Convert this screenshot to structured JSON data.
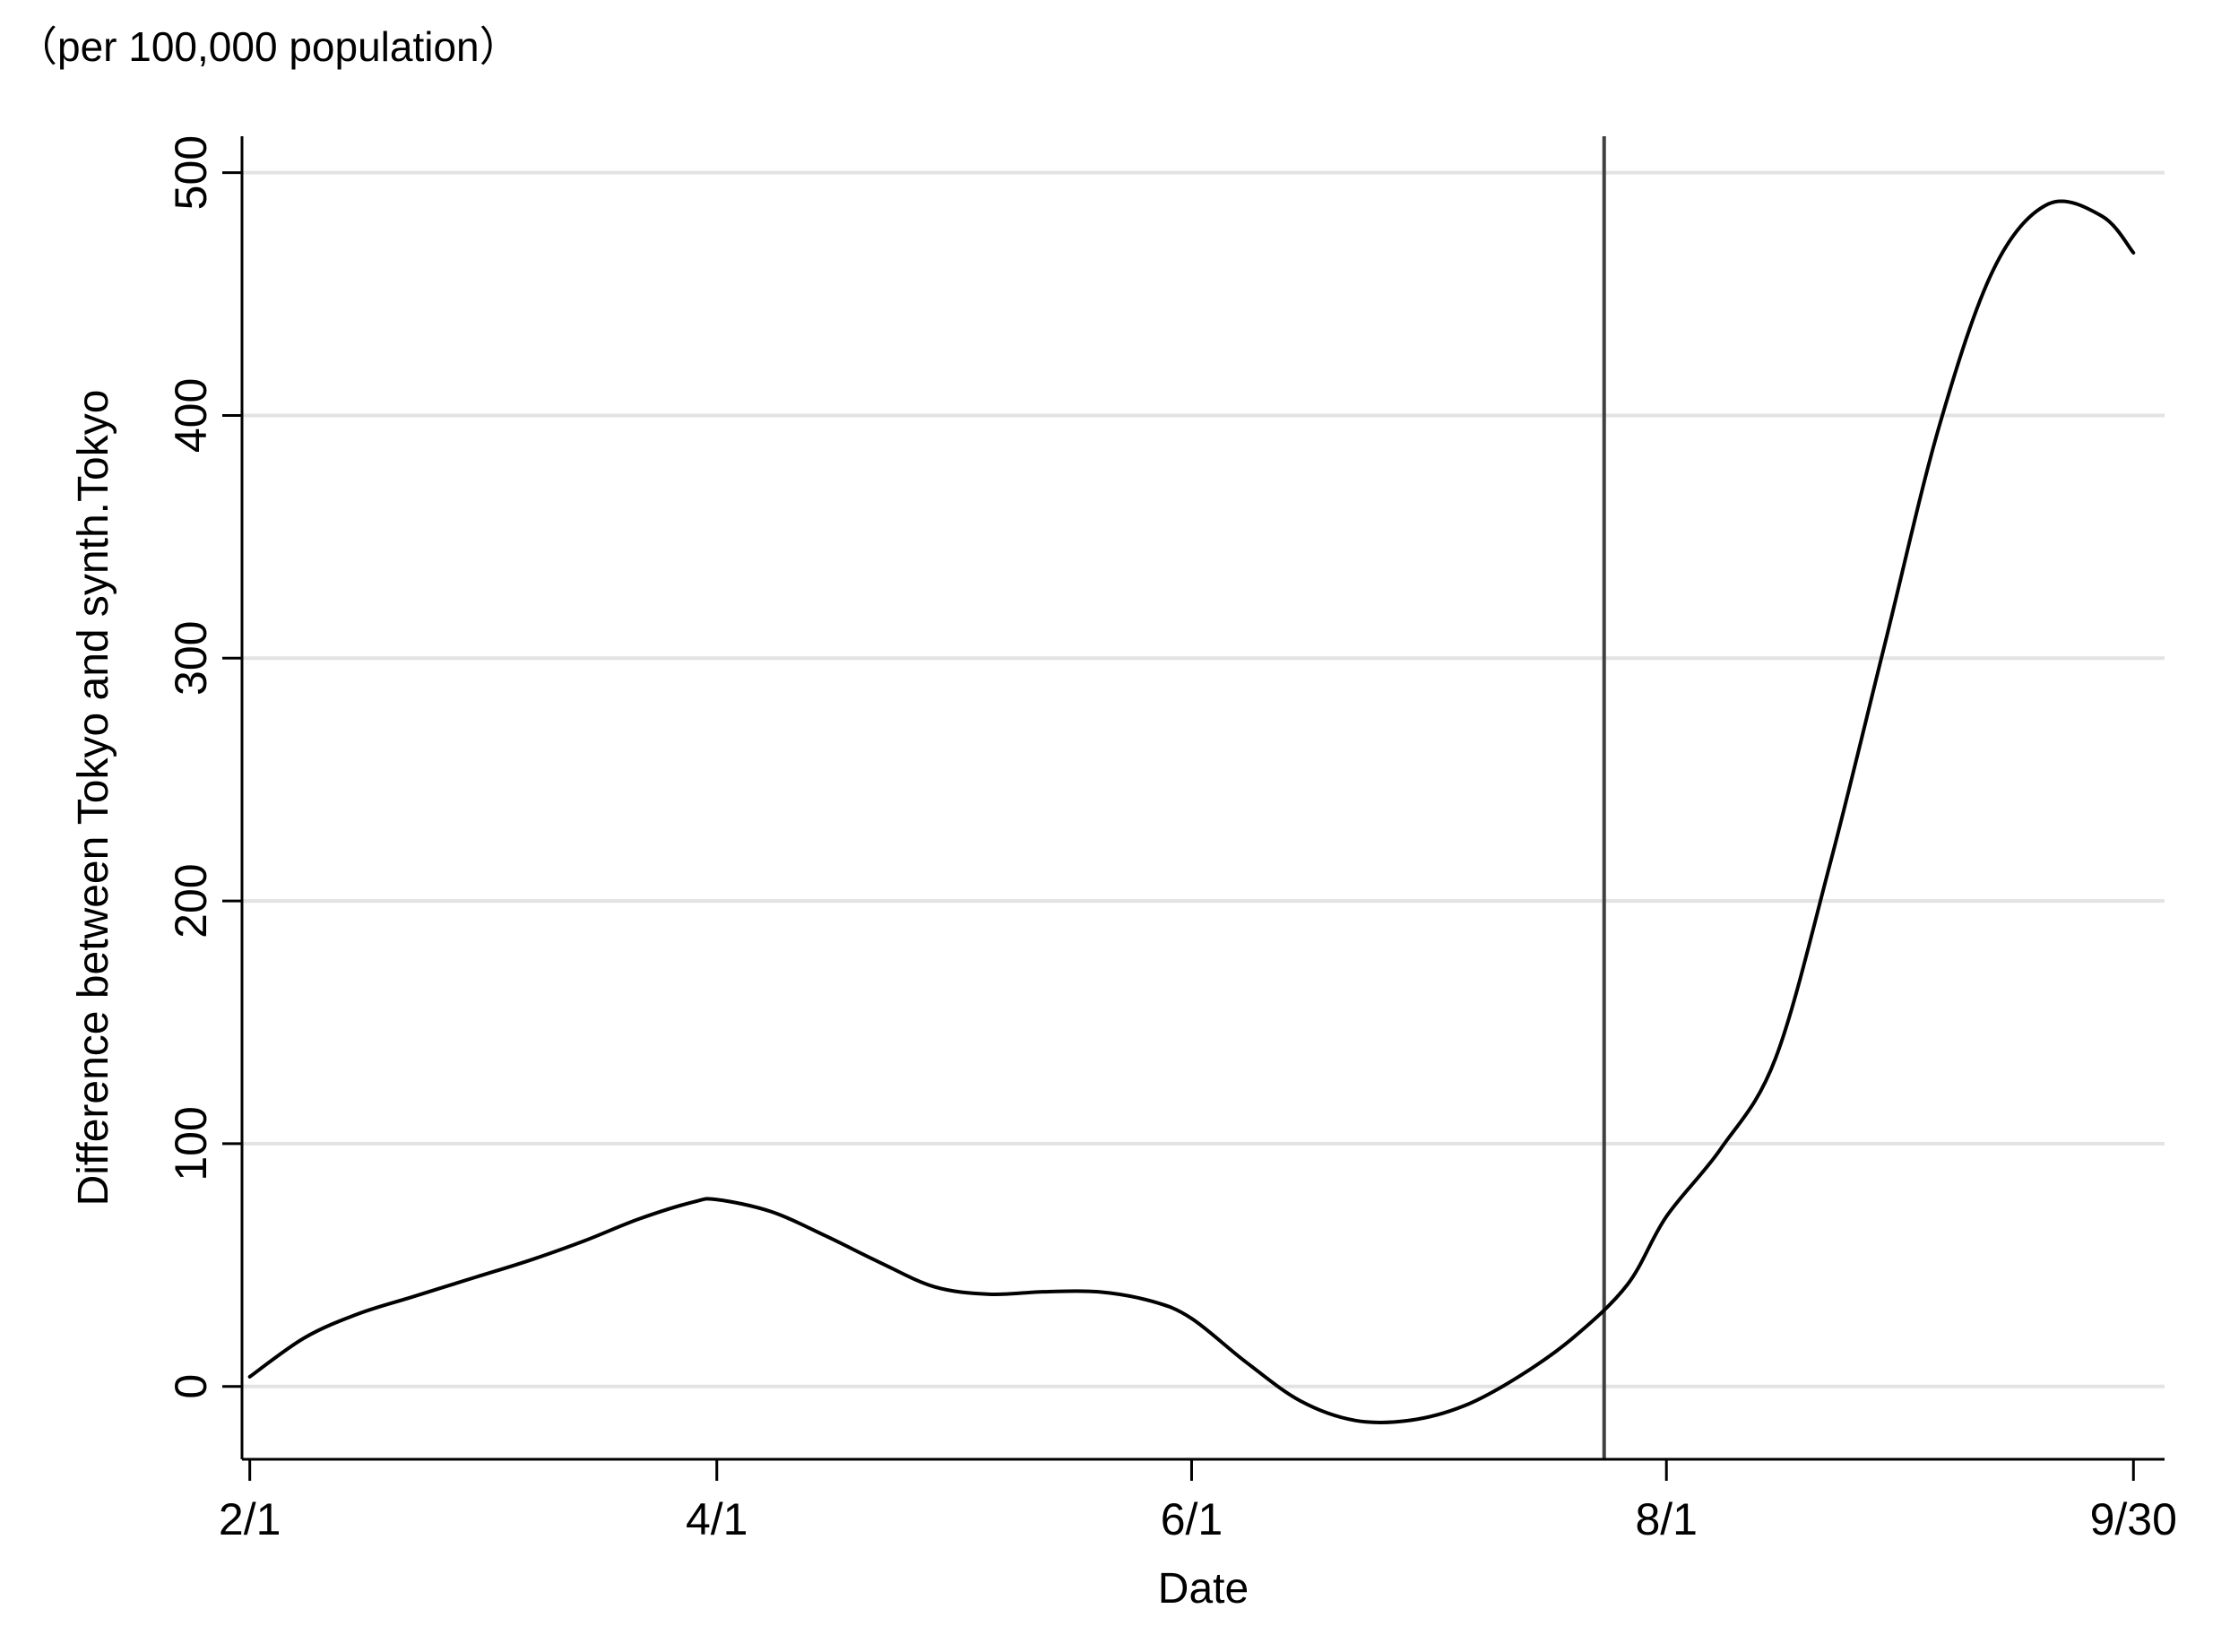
{
  "chart_data": {
    "type": "line",
    "title": "",
    "note": "（per 100,000 population）",
    "xlabel": "Date",
    "ylabel": "Difference between Tokyo and synth.Tokyo",
    "x_tick_labels": [
      "2/1",
      "4/1",
      "6/1",
      "8/1",
      "9/30"
    ],
    "y_ticks": [
      0,
      100,
      200,
      300,
      400,
      500
    ],
    "ylim": [
      -30,
      515
    ],
    "xlim": [
      "1/31",
      "10/4"
    ],
    "grid": "horizontal",
    "legend": "none",
    "vertical_line_x": "7/24",
    "series": [
      {
        "values": [
          {
            "x": "2/1",
            "y": 4
          },
          {
            "x": "2/8",
            "y": 20
          },
          {
            "x": "2/15",
            "y": 30
          },
          {
            "x": "2/22",
            "y": 37
          },
          {
            "x": "3/1",
            "y": 45
          },
          {
            "x": "3/8",
            "y": 52
          },
          {
            "x": "3/15",
            "y": 60
          },
          {
            "x": "3/22",
            "y": 69
          },
          {
            "x": "3/29",
            "y": 76
          },
          {
            "x": "4/1",
            "y": 77
          },
          {
            "x": "4/8",
            "y": 72
          },
          {
            "x": "4/15",
            "y": 62
          },
          {
            "x": "4/22",
            "y": 51
          },
          {
            "x": "4/29",
            "y": 41
          },
          {
            "x": "5/6",
            "y": 38
          },
          {
            "x": "5/13",
            "y": 39
          },
          {
            "x": "5/20",
            "y": 39
          },
          {
            "x": "5/27",
            "y": 35
          },
          {
            "x": "6/1",
            "y": 28
          },
          {
            "x": "6/8",
            "y": 10
          },
          {
            "x": "6/15",
            "y": -6
          },
          {
            "x": "6/22",
            "y": -14
          },
          {
            "x": "6/29",
            "y": -14
          },
          {
            "x": "7/6",
            "y": -8
          },
          {
            "x": "7/13",
            "y": 4
          },
          {
            "x": "7/20",
            "y": 20
          },
          {
            "x": "7/27",
            "y": 42
          },
          {
            "x": "8/1",
            "y": 70
          },
          {
            "x": "8/8",
            "y": 98
          },
          {
            "x": "8/15",
            "y": 135
          },
          {
            "x": "8/22",
            "y": 215
          },
          {
            "x": "8/29",
            "y": 305
          },
          {
            "x": "9/5",
            "y": 395
          },
          {
            "x": "9/12",
            "y": 460
          },
          {
            "x": "9/19",
            "y": 487
          },
          {
            "x": "9/26",
            "y": 482
          },
          {
            "x": "9/30",
            "y": 467
          }
        ]
      }
    ]
  }
}
